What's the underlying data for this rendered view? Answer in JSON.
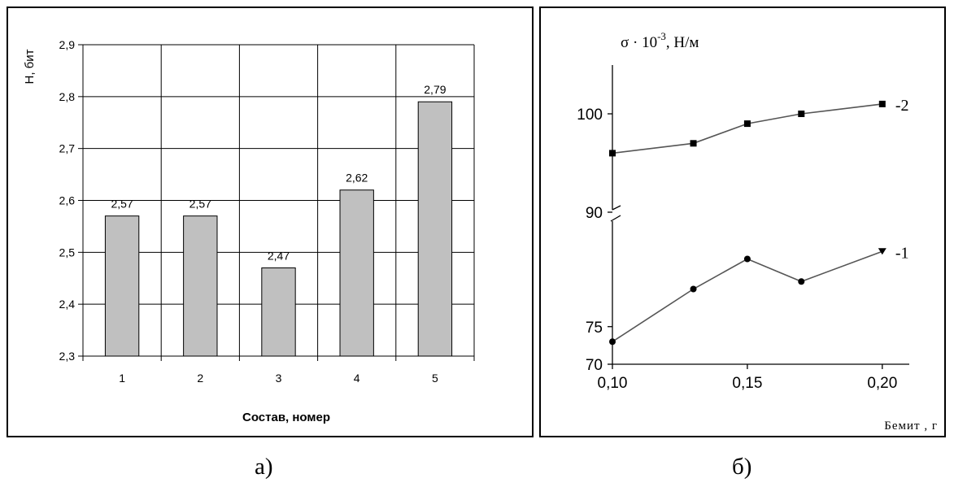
{
  "chart_data": [
    {
      "type": "bar",
      "panel_label": "а)",
      "categories": [
        "1",
        "2",
        "3",
        "4",
        "5"
      ],
      "values": [
        2.57,
        2.57,
        2.47,
        2.62,
        2.79
      ],
      "value_labels": [
        "2,57",
        "2,57",
        "2,47",
        "2,62",
        "2,79"
      ],
      "xlabel": "Состав, номер",
      "ylabel": "H, бит",
      "ylim": [
        2.3,
        2.9
      ],
      "yticks": [
        2.3,
        2.4,
        2.5,
        2.6,
        2.7,
        2.8,
        2.9
      ],
      "ytick_labels": [
        "2,3",
        "2,4",
        "2,5",
        "2,6",
        "2,7",
        "2,8",
        "2,9"
      ],
      "grid": true,
      "bar_color": "#c0c0c0"
    },
    {
      "type": "line",
      "panel_label": "б)",
      "ylabel_main": "σ · 10",
      "ylabel_exp": "-3",
      "ylabel_unit": ", Н/м",
      "xlabel": "Бемит , г",
      "xlim": [
        0.1,
        0.21
      ],
      "xticks": [
        0.1,
        0.15,
        0.2
      ],
      "xtick_labels": [
        "0,10",
        "0,15",
        "0,20"
      ],
      "axis_break": true,
      "yticks_lower": [
        70,
        75
      ],
      "yticks_upper": [
        90,
        100
      ],
      "ytick_labels": [
        "70",
        "75",
        "90",
        "100"
      ],
      "grid": false,
      "series": [
        {
          "name": "-2",
          "marker": "square",
          "x": [
            0.1,
            0.13,
            0.15,
            0.17,
            0.2
          ],
          "y": [
            96,
            97,
            99,
            100,
            101
          ]
        },
        {
          "name": "-1",
          "marker": "circle",
          "x": [
            0.1,
            0.13,
            0.15,
            0.17,
            0.2
          ],
          "y": [
            73,
            80,
            84,
            81,
            85
          ]
        }
      ]
    }
  ]
}
